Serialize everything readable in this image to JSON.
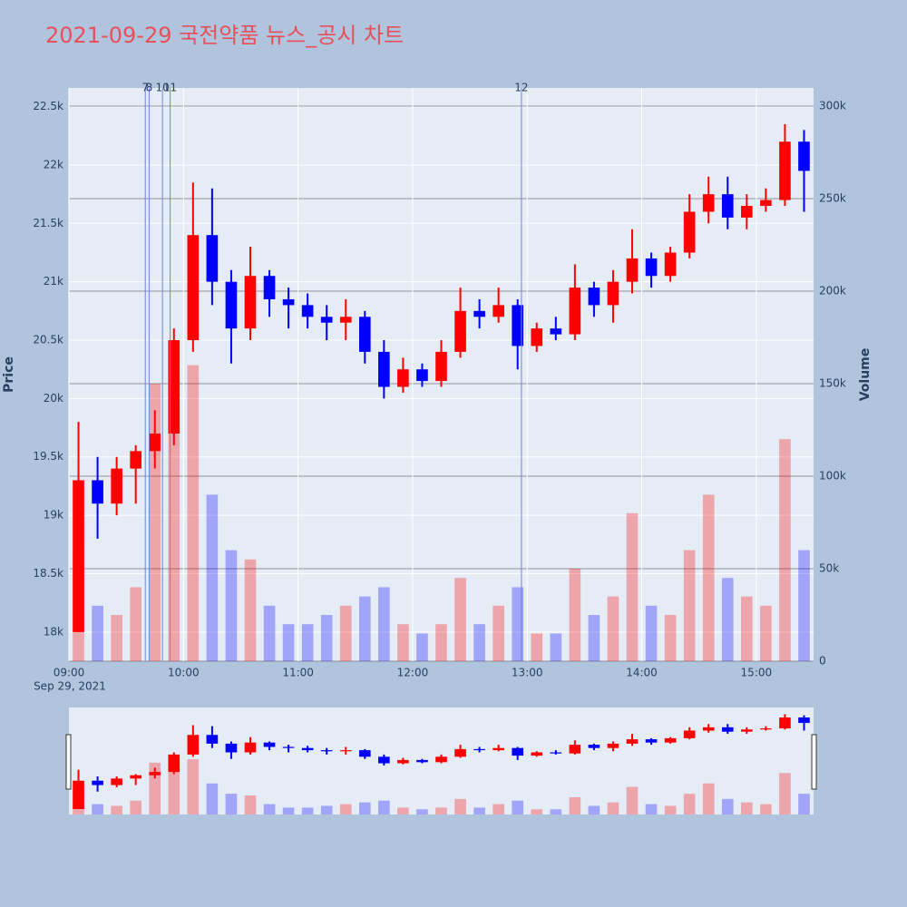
{
  "chart_data": {
    "type": "candlestick",
    "title": "2021-09-29 국전약품 뉴스_공시 차트",
    "y_label": "Price",
    "y2_label": "Volume",
    "date_label": "Sep 29, 2021",
    "x": [
      "09:00",
      "09:10",
      "09:20",
      "09:30",
      "09:40",
      "09:50",
      "10:00",
      "10:10",
      "10:20",
      "10:30",
      "10:40",
      "10:50",
      "11:00",
      "11:10",
      "11:20",
      "11:30",
      "11:40",
      "11:50",
      "12:00",
      "12:10",
      "12:20",
      "12:30",
      "12:40",
      "12:50",
      "13:00",
      "13:10",
      "13:20",
      "13:30",
      "13:40",
      "13:50",
      "14:00",
      "14:10",
      "14:20",
      "14:30",
      "14:40",
      "14:50",
      "15:00",
      "15:10",
      "15:20"
    ],
    "open": [
      18000,
      19300,
      19100,
      19400,
      19550,
      19700,
      20500,
      21400,
      21000,
      20600,
      21050,
      20850,
      20800,
      20700,
      20650,
      20700,
      20400,
      20100,
      20250,
      20150,
      20400,
      20750,
      20700,
      20800,
      20450,
      20600,
      20550,
      20950,
      20800,
      21000,
      21200,
      21050,
      21250,
      21600,
      21750,
      21550,
      21650,
      21700,
      22200
    ],
    "high": [
      19800,
      19500,
      19500,
      19600,
      19900,
      20600,
      21850,
      21800,
      21100,
      21300,
      21100,
      20950,
      20900,
      20800,
      20850,
      20750,
      20500,
      20350,
      20300,
      20500,
      20950,
      20850,
      20950,
      20850,
      20650,
      20700,
      21150,
      21000,
      21100,
      21450,
      21250,
      21300,
      21750,
      21900,
      21900,
      21750,
      21800,
      22350,
      22300
    ],
    "low": [
      18000,
      18800,
      19000,
      19100,
      19400,
      19600,
      20400,
      20800,
      20300,
      20500,
      20700,
      20600,
      20600,
      20500,
      20500,
      20300,
      20000,
      20050,
      20100,
      20100,
      20350,
      20600,
      20650,
      20250,
      20400,
      20500,
      20500,
      20700,
      20650,
      20900,
      20950,
      21000,
      21200,
      21500,
      21450,
      21450,
      21600,
      21650,
      21600
    ],
    "close": [
      19300,
      19100,
      19400,
      19550,
      19700,
      20500,
      21400,
      21000,
      20600,
      21050,
      20850,
      20800,
      20700,
      20650,
      20700,
      20400,
      20100,
      20250,
      20150,
      20400,
      20750,
      20700,
      20800,
      20450,
      20600,
      20550,
      20950,
      20800,
      21000,
      21200,
      21050,
      21250,
      21600,
      21750,
      21550,
      21650,
      21700,
      22200,
      21950
    ],
    "volume": [
      60000,
      30000,
      25000,
      40000,
      150000,
      140000,
      160000,
      90000,
      60000,
      55000,
      30000,
      20000,
      20000,
      25000,
      30000,
      35000,
      40000,
      20000,
      15000,
      20000,
      45000,
      20000,
      30000,
      40000,
      15000,
      15000,
      50000,
      25000,
      35000,
      80000,
      30000,
      25000,
      60000,
      90000,
      45000,
      35000,
      30000,
      120000,
      60000
    ],
    "increasing_color": "#ff0000",
    "decreasing_color": "#0000ff",
    "xlim": [
      "09:00",
      "15:30"
    ],
    "xticks": [
      "09:00",
      "10:00",
      "11:00",
      "12:00",
      "13:00",
      "14:00",
      "15:00"
    ],
    "ylim": [
      17750,
      22660
    ],
    "yticks": [
      {
        "value": 18000,
        "label": "18k"
      },
      {
        "value": 18500,
        "label": "18.5k"
      },
      {
        "value": 19000,
        "label": "19k"
      },
      {
        "value": 19500,
        "label": "19.5k"
      },
      {
        "value": 20000,
        "label": "20k"
      },
      {
        "value": 20500,
        "label": "20.5k"
      },
      {
        "value": 21000,
        "label": "21k"
      },
      {
        "value": 21500,
        "label": "21.5k"
      },
      {
        "value": 22000,
        "label": "22k"
      },
      {
        "value": 22500,
        "label": "22.5k"
      }
    ],
    "y2lim": [
      0,
      309800
    ],
    "y2ticks": [
      0,
      {
        "value": 50000,
        "label": "50k"
      },
      {
        "value": 100000,
        "label": "100k"
      },
      {
        "value": 150000,
        "label": "150k"
      },
      {
        "value": 200000,
        "label": "200k"
      },
      {
        "value": 250000,
        "label": "250k"
      },
      {
        "value": 300000,
        "label": "300k"
      }
    ],
    "annotations": [
      {
        "x": "09:40",
        "text": "7"
      },
      {
        "x": "09:42",
        "text": "8"
      },
      {
        "x": "09:49",
        "text": "10"
      },
      {
        "x": "09:53",
        "text": "11"
      },
      {
        "x": "12:57",
        "text": "12"
      }
    ],
    "grid": true,
    "range_slider": true
  }
}
